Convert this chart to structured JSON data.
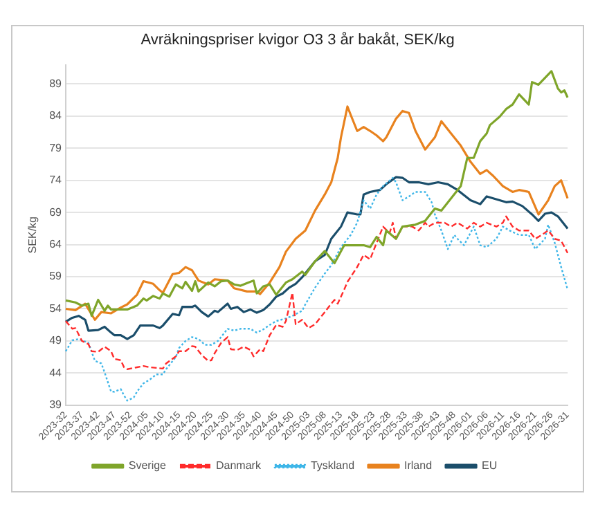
{
  "chart_data": {
    "type": "line",
    "title": "Avräkningspriser kvigor O3 3 år bakåt, SEK/kg",
    "ylabel": "SEK/kg",
    "categories": [
      "2023-32",
      null,
      null,
      null,
      null,
      "2023-37",
      null,
      null,
      null,
      null,
      "2023-42",
      null,
      null,
      null,
      null,
      "2023-47",
      null,
      null,
      null,
      null,
      "2023-52",
      null,
      null,
      null,
      null,
      "2024-05",
      null,
      null,
      null,
      null,
      "2024-10",
      null,
      null,
      null,
      null,
      "2024-15",
      null,
      null,
      null,
      null,
      "2024-20",
      null,
      null,
      null,
      null,
      "2024-25",
      null,
      null,
      null,
      null,
      "2024-30",
      null,
      null,
      null,
      null,
      "2024-35",
      null,
      null,
      null,
      null,
      "2024-40",
      null,
      null,
      null,
      null,
      "2024-45",
      null,
      null,
      null,
      null,
      "2024-50",
      null,
      null,
      null,
      null,
      "2025-03",
      null,
      null,
      null,
      null,
      "2025-08",
      null,
      null,
      null,
      null,
      "2025-13",
      null,
      null,
      null,
      null,
      "2025-18",
      null,
      null,
      null,
      null,
      "2025-23",
      null,
      null,
      null,
      null,
      "2025-28",
      null,
      null,
      null,
      null,
      "2025-33",
      null,
      null,
      null,
      null,
      "2025-38",
      null,
      null,
      null,
      null,
      "2025-43",
      null,
      null,
      null,
      null,
      "2025-48",
      null,
      null,
      null,
      null,
      "2026-01",
      null,
      null,
      null,
      null,
      "2026-06",
      null,
      null,
      null,
      null,
      "2026-11",
      null,
      null,
      null,
      null,
      "2026-16",
      null,
      null,
      null,
      null,
      "2026-21",
      null,
      null,
      null,
      null,
      "2026-26",
      null,
      null,
      null,
      null,
      "2026-31"
    ],
    "ylim": [
      39,
      92
    ],
    "yticks": [
      39,
      44,
      49,
      54,
      59,
      64,
      69,
      74,
      79,
      84,
      89
    ],
    "grid": "y",
    "legend": "bottom",
    "marker": "none",
    "series": [
      {
        "name": "Sverige",
        "color": "#7fa52a",
        "line_style": "solid",
        "values": [
          55.3,
          null,
          null,
          55.0,
          null,
          54.5,
          null,
          54.8,
          52.9,
          null,
          55.4,
          null,
          53.7,
          54.5,
          53.9,
          null,
          null,
          53.9,
          null,
          53.9,
          null,
          null,
          54.5,
          null,
          55.6,
          55.3,
          null,
          56.0,
          null,
          55.6,
          56.4,
          null,
          55.9,
          null,
          57.8,
          null,
          57.2,
          58.2,
          null,
          56.8,
          58.3,
          56.7,
          null,
          null,
          58.1,
          null,
          57.5,
          null,
          58.3,
          null,
          58.4,
          null,
          57.8,
          null,
          57.6,
          null,
          58.0,
          null,
          58.4,
          56.4,
          null,
          57.5,
          null,
          57.8,
          null,
          56.2,
          null,
          null,
          58.1,
          null,
          58.6,
          null,
          null,
          59.8,
          59.3,
          null,
          null,
          61.4,
          null,
          null,
          63.0,
          null,
          null,
          61.1,
          null,
          null,
          63.9,
          null,
          null,
          63.9,
          null,
          null,
          63.9,
          null,
          63.6,
          null,
          65.2,
          null,
          63.9,
          66.2,
          null,
          null,
          64.9,
          null,
          66.8,
          null,
          null,
          null,
          67.1,
          null,
          null,
          67.7,
          null,
          null,
          69.6,
          null,
          69.3,
          null,
          null,
          71.2,
          null,
          null,
          73.1,
          null,
          77.5,
          null,
          77.5,
          null,
          80.1,
          null,
          81.3,
          82.6,
          null,
          null,
          83.9,
          null,
          85.1,
          null,
          85.8,
          null,
          87.4,
          null,
          null,
          85.8,
          89.3,
          null,
          88.9,
          null,
          null,
          null,
          91.0,
          null,
          88.3,
          87.7,
          88.0,
          86.9
        ]
      },
      {
        "name": "Danmark",
        "color": "#ff2b2b",
        "line_style": "dashed",
        "values": [
          52.1,
          null,
          50.9,
          51.0,
          null,
          49.0,
          null,
          48.5,
          47.4,
          null,
          47.3,
          null,
          48.1,
          null,
          47.4,
          46.2,
          null,
          46.0,
          44.9,
          44.6,
          null,
          null,
          44.9,
          null,
          45.1,
          null,
          44.9,
          null,
          44.8,
          null,
          44.7,
          45.5,
          null,
          null,
          46.6,
          47.4,
          null,
          47.4,
          null,
          48.2,
          48.1,
          null,
          46.8,
          null,
          45.9,
          46.0,
          47.1,
          null,
          48.7,
          null,
          49.6,
          47.7,
          null,
          47.6,
          null,
          48.1,
          null,
          47.6,
          46.6,
          null,
          47.7,
          47.4,
          null,
          49.9,
          null,
          51.5,
          null,
          51.2,
          52.1,
          null,
          56.5,
          51.6,
          null,
          52.3,
          null,
          51.0,
          null,
          51.6,
          null,
          null,
          53.5,
          null,
          54.8,
          55.4,
          54.8,
          null,
          57.0,
          58.2,
          null,
          null,
          60.5,
          null,
          62.4,
          null,
          61.7,
          63.0,
          null,
          null,
          66.8,
          null,
          65.8,
          67.4,
          64.9,
          null,
          66.8,
          null,
          null,
          66.8,
          null,
          66.2,
          null,
          67.4,
          66.8,
          null,
          67.4,
          null,
          null,
          67.4,
          null,
          66.8,
          null,
          67.4,
          null,
          null,
          66.5,
          null,
          67.4,
          null,
          66.8,
          null,
          67.4,
          null,
          null,
          66.8,
          null,
          67.4,
          68.4,
          null,
          66.8,
          null,
          66.2,
          null,
          null,
          66.2,
          null,
          64.9,
          null,
          65.5,
          null,
          66.2,
          null,
          64.9,
          null,
          64.6,
          null,
          62.7
        ]
      },
      {
        "name": "Tyskland",
        "color": "#3fb6e8",
        "line_style": "dotted",
        "values": [
          47.4,
          null,
          49.1,
          null,
          49.3,
          null,
          null,
          48.7,
          null,
          45.9,
          null,
          45.5,
          44.1,
          null,
          41.1,
          41.1,
          null,
          41.5,
          40.5,
          39.7,
          null,
          40.2,
          41.1,
          null,
          42.4,
          null,
          43.0,
          null,
          43.8,
          null,
          43.8,
          44.6,
          null,
          null,
          46.5,
          47.9,
          null,
          49.0,
          null,
          49.6,
          null,
          49.3,
          null,
          48.4,
          null,
          48.4,
          null,
          49.0,
          null,
          null,
          50.9,
          null,
          50.6,
          null,
          50.9,
          null,
          null,
          50.9,
          null,
          50.3,
          null,
          50.8,
          null,
          51.5,
          null,
          52.1,
          null,
          null,
          52.5,
          null,
          52.9,
          null,
          null,
          53.7,
          54.7,
          null,
          null,
          57.3,
          null,
          null,
          59.5,
          null,
          60.8,
          null,
          null,
          63.6,
          null,
          null,
          65.5,
          null,
          67.4,
          null,
          70.9,
          null,
          69.6,
          null,
          71.8,
          null,
          73.1,
          null,
          null,
          74.4,
          73.7,
          null,
          70.9,
          null,
          71.5,
          null,
          72.2,
          null,
          null,
          72.2,
          null,
          70.6,
          68.7,
          null,
          66.2,
          null,
          63.3,
          null,
          65.5,
          64.9,
          null,
          63.9,
          null,
          null,
          66.8,
          null,
          63.9,
          null,
          63.6,
          null,
          null,
          64.9,
          null,
          66.8,
          null,
          66.2,
          null,
          null,
          65.5,
          null,
          null,
          65.5,
          null,
          63.3,
          null,
          null,
          64.9,
          67.1,
          null,
          64.3,
          null,
          60.5,
          null,
          57.0
        ]
      },
      {
        "name": "Irland",
        "color": "#e8821e",
        "line_style": "solid",
        "values": [
          54.0,
          null,
          null,
          53.8,
          null,
          null,
          54.8,
          null,
          null,
          52.3,
          null,
          53.5,
          null,
          null,
          53.3,
          null,
          null,
          54.2,
          null,
          54.7,
          null,
          null,
          56.2,
          null,
          58.3,
          null,
          null,
          57.9,
          null,
          56.9,
          56.5,
          null,
          null,
          59.4,
          null,
          59.6,
          null,
          60.5,
          null,
          60.0,
          null,
          58.4,
          null,
          null,
          57.8,
          null,
          58.6,
          null,
          null,
          null,
          58.4,
          null,
          57.2,
          null,
          null,
          null,
          56.7,
          null,
          null,
          56.7,
          56.3,
          null,
          null,
          58.1,
          null,
          null,
          60.5,
          null,
          62.9,
          null,
          null,
          64.9,
          null,
          null,
          66.2,
          null,
          null,
          69.3,
          null,
          null,
          71.8,
          null,
          73.7,
          null,
          77.5,
          80.7,
          null,
          85.5,
          84.2,
          null,
          81.7,
          null,
          82.3,
          null,
          81.7,
          null,
          81.0,
          null,
          80.1,
          80.7,
          null,
          null,
          83.6,
          null,
          84.8,
          null,
          84.5,
          null,
          81.7,
          null,
          null,
          78.8,
          null,
          null,
          80.7,
          null,
          83.2,
          null,
          null,
          81.3,
          null,
          null,
          79.4,
          null,
          null,
          76.9,
          null,
          null,
          75.0,
          null,
          75.6,
          null,
          74.7,
          null,
          null,
          73.1,
          null,
          null,
          72.2,
          null,
          72.5,
          null,
          null,
          72.2,
          null,
          null,
          68.7,
          null,
          null,
          70.9,
          null,
          73.1,
          null,
          74.0,
          null,
          71.2
        ]
      },
      {
        "name": "EU",
        "color": "#1b4e6b",
        "line_style": "solid",
        "values": [
          52.0,
          null,
          52.6,
          null,
          52.9,
          null,
          52.3,
          50.6,
          null,
          null,
          50.7,
          null,
          51.2,
          null,
          50.3,
          49.9,
          null,
          49.9,
          null,
          49.3,
          null,
          49.9,
          null,
          51.4,
          null,
          51.4,
          null,
          51.4,
          null,
          51.0,
          51.4,
          null,
          null,
          53.2,
          null,
          53.0,
          54.3,
          null,
          null,
          54.3,
          54.5,
          null,
          53.5,
          null,
          52.8,
          null,
          53.7,
          53.5,
          null,
          null,
          54.8,
          54.0,
          null,
          54.3,
          null,
          53.5,
          null,
          53.9,
          null,
          53.4,
          null,
          53.8,
          null,
          54.7,
          null,
          55.9,
          null,
          56.4,
          null,
          57.3,
          null,
          57.9,
          null,
          58.9,
          null,
          null,
          null,
          61.4,
          null,
          null,
          62.4,
          null,
          64.9,
          null,
          null,
          66.8,
          null,
          69.0,
          null,
          null,
          68.7,
          68.7,
          71.8,
          null,
          72.2,
          null,
          null,
          72.5,
          null,
          73.4,
          null,
          null,
          74.5,
          null,
          74.4,
          null,
          73.7,
          null,
          null,
          73.7,
          null,
          null,
          73.4,
          null,
          null,
          73.7,
          null,
          null,
          73.4,
          null,
          null,
          72.5,
          null,
          null,
          null,
          70.9,
          null,
          null,
          70.3,
          null,
          71.5,
          null,
          71.2,
          null,
          70.9,
          null,
          70.6,
          null,
          70.7,
          null,
          null,
          70.0,
          null,
          null,
          68.7,
          null,
          67.7,
          null,
          68.8,
          null,
          69.0,
          null,
          68.4,
          null,
          null,
          66.5
        ]
      }
    ]
  }
}
